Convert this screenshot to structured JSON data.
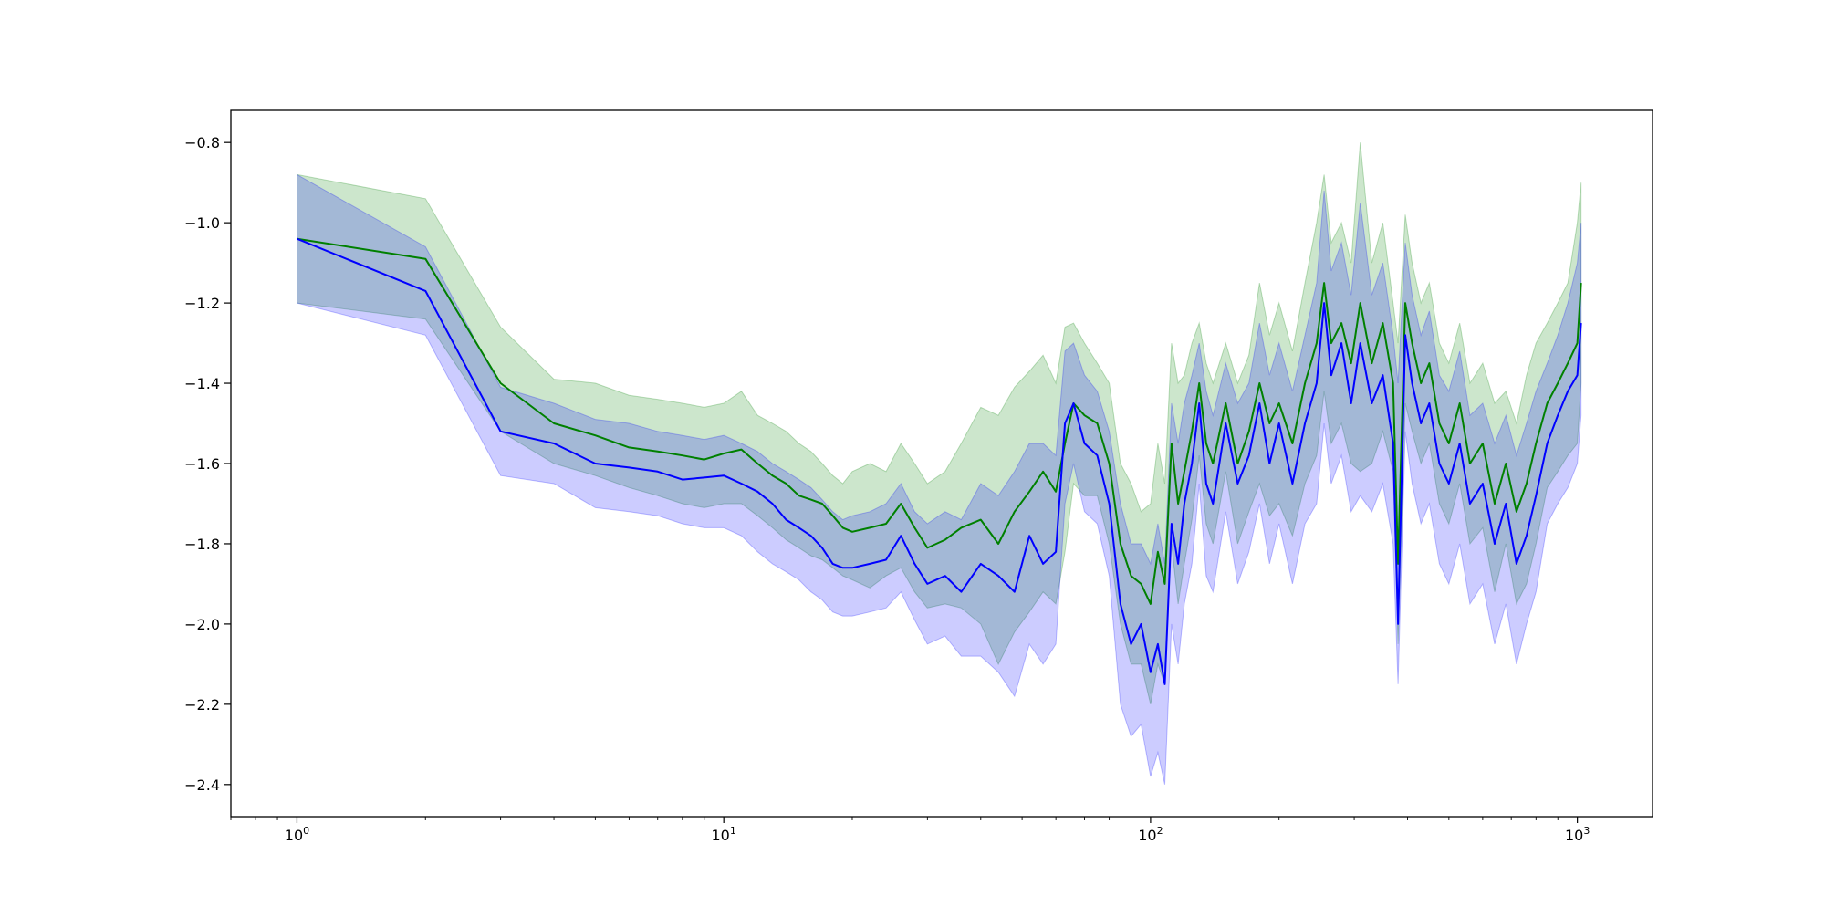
{
  "chart_data": {
    "type": "line",
    "title": "",
    "xlabel": "",
    "ylabel": "",
    "x_scale": "log",
    "xlim": [
      0.7,
      1500
    ],
    "ylim": [
      -2.48,
      -0.72
    ],
    "grid": false,
    "x_ticks": [
      {
        "value": 1,
        "base": "10",
        "exp": "0"
      },
      {
        "value": 10,
        "base": "10",
        "exp": "1"
      },
      {
        "value": 100,
        "base": "10",
        "exp": "2"
      },
      {
        "value": 1000,
        "base": "10",
        "exp": "3"
      }
    ],
    "y_ticks": [
      {
        "value": -0.8,
        "label": "−0.8"
      },
      {
        "value": -1.0,
        "label": "−1.0"
      },
      {
        "value": -1.2,
        "label": "−1.2"
      },
      {
        "value": -1.4,
        "label": "−1.4"
      },
      {
        "value": -1.6,
        "label": "−1.6"
      },
      {
        "value": -1.8,
        "label": "−1.8"
      },
      {
        "value": -2.0,
        "label": "−2.0"
      },
      {
        "value": -2.2,
        "label": "−2.2"
      },
      {
        "value": -2.4,
        "label": "−2.4"
      }
    ],
    "x": [
      1,
      2,
      3,
      4,
      5,
      6,
      7,
      8,
      9,
      10,
      11,
      12,
      13,
      14,
      15,
      16,
      17,
      18,
      19,
      20,
      22,
      24,
      26,
      28,
      30,
      33,
      36,
      40,
      44,
      48,
      52,
      56,
      60,
      63,
      66,
      70,
      75,
      80,
      85,
      90,
      95,
      100,
      104,
      108,
      112,
      116,
      120,
      125,
      130,
      135,
      140,
      150,
      160,
      170,
      180,
      190,
      200,
      215,
      230,
      245,
      255,
      265,
      280,
      295,
      310,
      330,
      350,
      370,
      380,
      395,
      410,
      430,
      450,
      475,
      500,
      530,
      560,
      600,
      640,
      680,
      720,
      760,
      800,
      850,
      900,
      950,
      1000,
      1020
    ],
    "series": [
      {
        "color": "#008000",
        "values": [
          -1.04,
          -1.09,
          -1.4,
          -1.5,
          -1.53,
          -1.56,
          -1.57,
          -1.58,
          -1.59,
          -1.575,
          -1.565,
          -1.6,
          -1.63,
          -1.65,
          -1.68,
          -1.69,
          -1.7,
          -1.73,
          -1.76,
          -1.77,
          -1.76,
          -1.75,
          -1.7,
          -1.76,
          -1.81,
          -1.79,
          -1.76,
          -1.74,
          -1.8,
          -1.72,
          -1.67,
          -1.62,
          -1.67,
          -1.55,
          -1.45,
          -1.48,
          -1.5,
          -1.6,
          -1.8,
          -1.88,
          -1.9,
          -1.95,
          -1.82,
          -1.9,
          -1.55,
          -1.7,
          -1.62,
          -1.52,
          -1.4,
          -1.55,
          -1.6,
          -1.45,
          -1.6,
          -1.52,
          -1.4,
          -1.5,
          -1.45,
          -1.55,
          -1.4,
          -1.3,
          -1.15,
          -1.3,
          -1.25,
          -1.35,
          -1.2,
          -1.35,
          -1.25,
          -1.4,
          -1.85,
          -1.2,
          -1.3,
          -1.4,
          -1.35,
          -1.5,
          -1.55,
          -1.45,
          -1.6,
          -1.55,
          -1.7,
          -1.6,
          -1.72,
          -1.65,
          -1.55,
          -1.45,
          -1.4,
          -1.35,
          -1.3,
          -1.15
        ],
        "band_upper": [
          -0.88,
          -0.94,
          -1.26,
          -1.39,
          -1.4,
          -1.43,
          -1.44,
          -1.45,
          -1.46,
          -1.45,
          -1.42,
          -1.48,
          -1.5,
          -1.52,
          -1.55,
          -1.57,
          -1.6,
          -1.63,
          -1.65,
          -1.62,
          -1.6,
          -1.62,
          -1.55,
          -1.6,
          -1.65,
          -1.62,
          -1.55,
          -1.46,
          -1.48,
          -1.41,
          -1.37,
          -1.33,
          -1.4,
          -1.26,
          -1.25,
          -1.3,
          -1.35,
          -1.4,
          -1.6,
          -1.65,
          -1.72,
          -1.7,
          -1.55,
          -1.65,
          -1.3,
          -1.4,
          -1.38,
          -1.3,
          -1.25,
          -1.35,
          -1.4,
          -1.3,
          -1.4,
          -1.33,
          -1.15,
          -1.28,
          -1.2,
          -1.32,
          -1.15,
          -1.0,
          -0.88,
          -1.05,
          -1.0,
          -1.1,
          -0.8,
          -1.1,
          -1.0,
          -1.2,
          -1.3,
          -0.98,
          -1.1,
          -1.2,
          -1.15,
          -1.3,
          -1.35,
          -1.25,
          -1.4,
          -1.35,
          -1.45,
          -1.42,
          -1.5,
          -1.38,
          -1.3,
          -1.25,
          -1.2,
          -1.15,
          -1.0,
          -0.9
        ],
        "band_lower": [
          -1.2,
          -1.24,
          -1.52,
          -1.6,
          -1.63,
          -1.66,
          -1.68,
          -1.7,
          -1.71,
          -1.7,
          -1.7,
          -1.73,
          -1.76,
          -1.79,
          -1.81,
          -1.83,
          -1.84,
          -1.86,
          -1.88,
          -1.89,
          -1.91,
          -1.88,
          -1.86,
          -1.92,
          -1.96,
          -1.95,
          -1.96,
          -2.0,
          -2.1,
          -2.02,
          -1.97,
          -1.92,
          -1.95,
          -1.82,
          -1.65,
          -1.68,
          -1.68,
          -1.8,
          -2.0,
          -2.1,
          -2.1,
          -2.2,
          -2.1,
          -2.15,
          -1.8,
          -1.95,
          -1.85,
          -1.74,
          -1.58,
          -1.75,
          -1.8,
          -1.62,
          -1.8,
          -1.72,
          -1.65,
          -1.73,
          -1.7,
          -1.78,
          -1.65,
          -1.58,
          -1.42,
          -1.55,
          -1.5,
          -1.6,
          -1.62,
          -1.6,
          -1.52,
          -1.62,
          -2.05,
          -1.45,
          -1.52,
          -1.6,
          -1.55,
          -1.7,
          -1.75,
          -1.65,
          -1.8,
          -1.76,
          -1.92,
          -1.8,
          -1.95,
          -1.9,
          -1.8,
          -1.66,
          -1.62,
          -1.58,
          -1.55,
          -1.4
        ]
      },
      {
        "color": "#0000ff",
        "values": [
          -1.04,
          -1.17,
          -1.52,
          -1.55,
          -1.6,
          -1.61,
          -1.62,
          -1.64,
          -1.635,
          -1.63,
          -1.65,
          -1.67,
          -1.7,
          -1.74,
          -1.76,
          -1.78,
          -1.81,
          -1.85,
          -1.86,
          -1.86,
          -1.85,
          -1.84,
          -1.78,
          -1.85,
          -1.9,
          -1.88,
          -1.92,
          -1.85,
          -1.88,
          -1.92,
          -1.78,
          -1.85,
          -1.82,
          -1.5,
          -1.45,
          -1.55,
          -1.58,
          -1.7,
          -1.95,
          -2.05,
          -2.0,
          -2.12,
          -2.05,
          -2.15,
          -1.75,
          -1.85,
          -1.7,
          -1.6,
          -1.45,
          -1.65,
          -1.7,
          -1.5,
          -1.65,
          -1.58,
          -1.45,
          -1.6,
          -1.5,
          -1.65,
          -1.5,
          -1.4,
          -1.2,
          -1.38,
          -1.3,
          -1.45,
          -1.3,
          -1.45,
          -1.38,
          -1.55,
          -2.0,
          -1.28,
          -1.4,
          -1.5,
          -1.45,
          -1.6,
          -1.65,
          -1.55,
          -1.7,
          -1.65,
          -1.8,
          -1.7,
          -1.85,
          -1.78,
          -1.68,
          -1.55,
          -1.48,
          -1.42,
          -1.38,
          -1.25
        ],
        "band_upper": [
          -0.88,
          -1.06,
          -1.41,
          -1.45,
          -1.49,
          -1.5,
          -1.52,
          -1.53,
          -1.54,
          -1.53,
          -1.55,
          -1.57,
          -1.6,
          -1.62,
          -1.64,
          -1.66,
          -1.69,
          -1.72,
          -1.74,
          -1.73,
          -1.72,
          -1.7,
          -1.65,
          -1.72,
          -1.75,
          -1.72,
          -1.74,
          -1.65,
          -1.68,
          -1.62,
          -1.55,
          -1.55,
          -1.58,
          -1.32,
          -1.3,
          -1.38,
          -1.42,
          -1.52,
          -1.7,
          -1.8,
          -1.8,
          -1.85,
          -1.75,
          -1.85,
          -1.45,
          -1.55,
          -1.45,
          -1.38,
          -1.3,
          -1.42,
          -1.48,
          -1.35,
          -1.45,
          -1.4,
          -1.25,
          -1.38,
          -1.3,
          -1.42,
          -1.28,
          -1.15,
          -0.92,
          -1.12,
          -1.05,
          -1.18,
          -0.95,
          -1.18,
          -1.1,
          -1.28,
          -1.4,
          -1.05,
          -1.18,
          -1.28,
          -1.22,
          -1.38,
          -1.42,
          -1.32,
          -1.48,
          -1.45,
          -1.55,
          -1.48,
          -1.58,
          -1.5,
          -1.42,
          -1.35,
          -1.28,
          -1.2,
          -1.1,
          -1.0
        ],
        "band_lower": [
          -1.2,
          -1.28,
          -1.63,
          -1.65,
          -1.71,
          -1.72,
          -1.73,
          -1.75,
          -1.76,
          -1.76,
          -1.78,
          -1.82,
          -1.85,
          -1.87,
          -1.89,
          -1.92,
          -1.94,
          -1.97,
          -1.98,
          -1.98,
          -1.97,
          -1.96,
          -1.92,
          -1.99,
          -2.05,
          -2.03,
          -2.08,
          -2.08,
          -2.12,
          -2.18,
          -2.05,
          -2.1,
          -2.05,
          -1.7,
          -1.6,
          -1.72,
          -1.75,
          -1.88,
          -2.2,
          -2.28,
          -2.25,
          -2.38,
          -2.32,
          -2.4,
          -2.0,
          -2.1,
          -1.95,
          -1.85,
          -1.65,
          -1.88,
          -1.92,
          -1.72,
          -1.9,
          -1.82,
          -1.7,
          -1.85,
          -1.75,
          -1.9,
          -1.75,
          -1.7,
          -1.5,
          -1.65,
          -1.58,
          -1.72,
          -1.68,
          -1.72,
          -1.65,
          -1.8,
          -2.15,
          -1.52,
          -1.65,
          -1.75,
          -1.7,
          -1.85,
          -1.9,
          -1.8,
          -1.95,
          -1.9,
          -2.05,
          -1.95,
          -2.1,
          -2.0,
          -1.92,
          -1.75,
          -1.7,
          -1.66,
          -1.6,
          -1.48
        ]
      }
    ]
  }
}
